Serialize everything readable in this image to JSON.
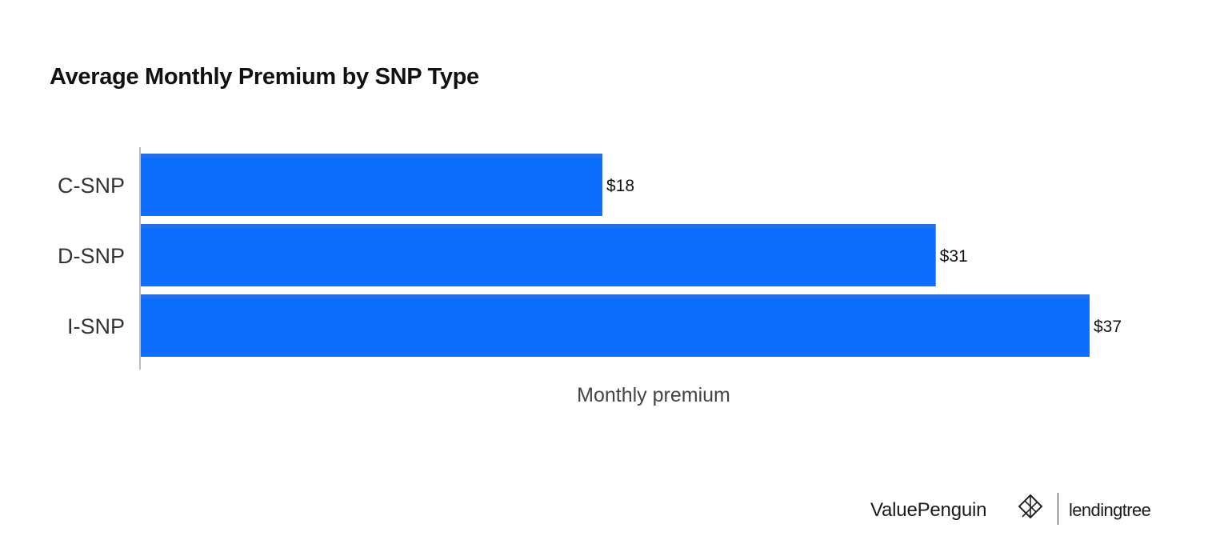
{
  "chart_data": {
    "type": "bar",
    "orientation": "horizontal",
    "title": "Average Monthly Premium by SNP Type",
    "categories": [
      "C-SNP",
      "D-SNP",
      "I-SNP"
    ],
    "values": [
      18,
      31,
      37
    ],
    "value_labels": [
      "$18",
      "$31",
      "$37"
    ],
    "xlabel": "Monthly premium",
    "ylabel": "",
    "xlim": [
      0,
      37
    ],
    "grid": false,
    "bar_color": "#0d6efd",
    "bar_top_color": "#2a6fe0"
  },
  "branding": {
    "valuepenguin": "ValuePenguin",
    "lendingtree": "lendingtree"
  },
  "colors": {
    "axis_line": "#bbbbbb",
    "text": "#111111"
  }
}
